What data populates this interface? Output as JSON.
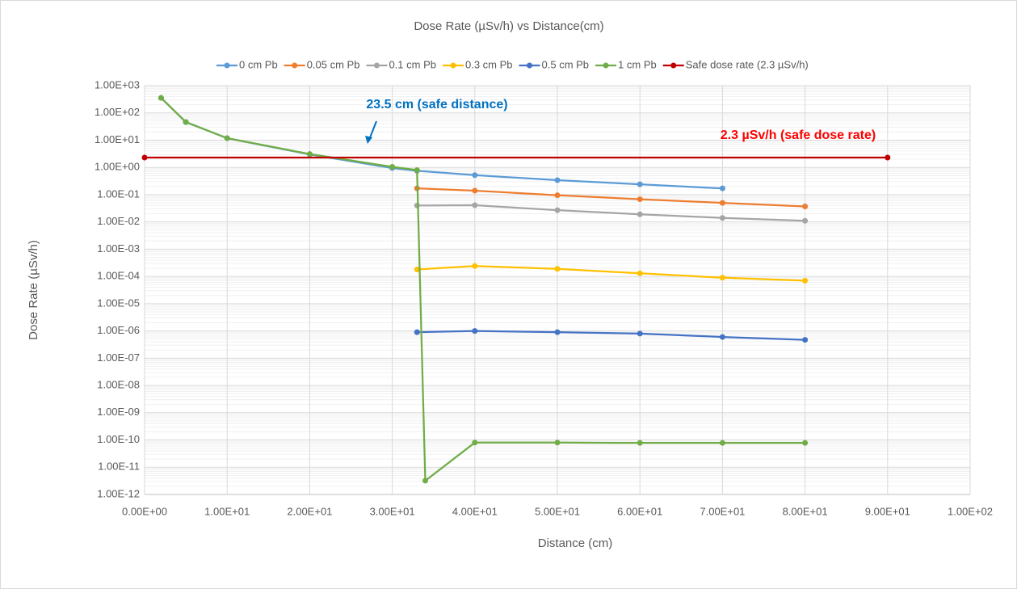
{
  "chart_data": {
    "type": "scatter",
    "title": "Dose Rate (µSv/h) vs Distance(cm)",
    "x_label": "Distance (cm)",
    "y_label": "Dose Rate (µSv/h)",
    "log_y": true,
    "grid": true,
    "minor_grid": true,
    "legend": "top",
    "xlim": [
      0,
      100
    ],
    "xticks": [
      {
        "value": 0,
        "label": "0.00E+00"
      },
      {
        "value": 10,
        "label": "1.00E+01"
      },
      {
        "value": 20,
        "label": "2.00E+01"
      },
      {
        "value": 30,
        "label": "3.00E+01"
      },
      {
        "value": 40,
        "label": "4.00E+01"
      },
      {
        "value": 50,
        "label": "5.00E+01"
      },
      {
        "value": 60,
        "label": "6.00E+01"
      },
      {
        "value": 70,
        "label": "7.00E+01"
      },
      {
        "value": 80,
        "label": "8.00E+01"
      },
      {
        "value": 90,
        "label": "9.00E+01"
      },
      {
        "value": 100,
        "label": "1.00E+02"
      }
    ],
    "ylim": [
      1e-12,
      1000
    ],
    "yticks": [
      {
        "value": 1e-12,
        "label": "1.00E-12"
      },
      {
        "value": 1e-11,
        "label": "1.00E-11"
      },
      {
        "value": 1e-10,
        "label": "1.00E-10"
      },
      {
        "value": 1e-09,
        "label": "1.00E-09"
      },
      {
        "value": 1e-08,
        "label": "1.00E-08"
      },
      {
        "value": 1e-07,
        "label": "1.00E-07"
      },
      {
        "value": 1e-06,
        "label": "1.00E-06"
      },
      {
        "value": 1e-05,
        "label": "1.00E-05"
      },
      {
        "value": 0.0001,
        "label": "1.00E-04"
      },
      {
        "value": 0.001,
        "label": "1.00E-03"
      },
      {
        "value": 0.01,
        "label": "1.00E-02"
      },
      {
        "value": 0.1,
        "label": "1.00E-01"
      },
      {
        "value": 1,
        "label": "1.00E+00"
      },
      {
        "value": 10,
        "label": "1.00E+01"
      },
      {
        "value": 100,
        "label": "1.00E+02"
      },
      {
        "value": 1000,
        "label": "1.00E+03"
      }
    ],
    "series": [
      {
        "name": "0 cm Pb",
        "color": "#5b9bd5",
        "x": [
          2,
          5,
          10,
          20,
          30,
          33,
          40,
          50,
          60,
          70
        ],
        "values": [
          355,
          46,
          11.8,
          3.0,
          0.95,
          0.75,
          0.52,
          0.34,
          0.24,
          0.17
        ]
      },
      {
        "name": "0.05 cm Pb",
        "color": "#ed7d31",
        "x": [
          33,
          40,
          50,
          60,
          70,
          80
        ],
        "values": [
          0.17,
          0.14,
          0.095,
          0.068,
          0.05,
          0.037
        ]
      },
      {
        "name": "0.1 cm Pb",
        "color": "#a5a5a5",
        "x": [
          33,
          40,
          50,
          60,
          70,
          80
        ],
        "values": [
          0.04,
          0.041,
          0.027,
          0.019,
          0.014,
          0.011
        ]
      },
      {
        "name": "0.3 cm Pb",
        "color": "#ffc000",
        "x": [
          33,
          40,
          50,
          60,
          70,
          80
        ],
        "values": [
          0.00018,
          0.00024,
          0.00019,
          0.00013,
          9e-05,
          7e-05
        ]
      },
      {
        "name": "0.5 cm Pb",
        "color": "#4472c4",
        "x": [
          33,
          40,
          50,
          60,
          70,
          80
        ],
        "values": [
          9e-07,
          1e-06,
          9e-07,
          8e-07,
          6e-07,
          4.7e-07
        ]
      },
      {
        "name": "1 cm Pb",
        "color": "#70ad47",
        "x": [
          2,
          5,
          10,
          20,
          30,
          33,
          34,
          40,
          50,
          60,
          70,
          80
        ],
        "values": [
          355,
          46,
          11.8,
          3.1,
          1.05,
          0.8,
          3.2e-12,
          8e-11,
          8e-11,
          7.8e-11,
          7.8e-11,
          7.8e-11
        ]
      },
      {
        "name": "Safe dose rate (2.3 µSv/h)",
        "color": "#c00000",
        "x": [
          0,
          90
        ],
        "values": [
          2.3,
          2.3
        ]
      }
    ],
    "annotations": [
      {
        "text": "23.5 cm (safe distance)",
        "color": "#0070c0"
      },
      {
        "text": "2.3 µSv/h (safe dose rate)",
        "color": "#ff0000"
      }
    ]
  }
}
